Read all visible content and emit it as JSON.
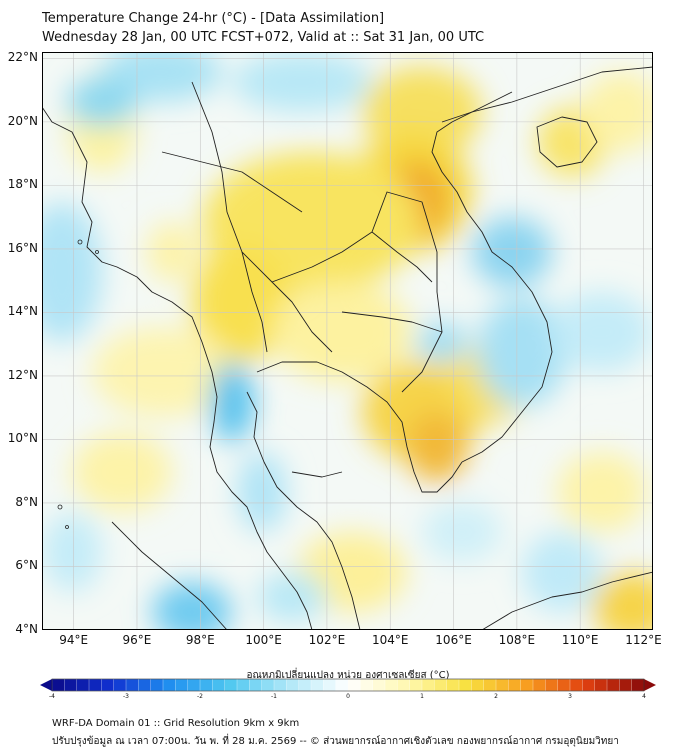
{
  "header": {
    "title_line1": "Temperature Change 24-hr (°C) - [Data Assimilation]",
    "title_line2": "Wednesday 28 Jan, 00 UTC FCST+072, Valid at :: Sat 31 Jan, 00 UTC"
  },
  "map": {
    "lat_labels": [
      "22°N",
      "20°N",
      "18°N",
      "16°N",
      "14°N",
      "12°N",
      "10°N",
      "8°N",
      "6°N",
      "4°N"
    ],
    "lon_labels": [
      "94°E",
      "96°E",
      "98°E",
      "100°E",
      "102°E",
      "104°E",
      "106°E",
      "108°E",
      "110°E",
      "112°E"
    ],
    "extent": {
      "lon_min": 93,
      "lon_max": 112.3,
      "lat_min": 4,
      "lat_max": 22.2
    },
    "colors": {
      "land_outline": "#222222",
      "grid": "#c8c8c8",
      "warm": "#f5e04a",
      "hot": "#f0a020",
      "cool": "#8cd8f0",
      "cold": "#40b8e8"
    }
  },
  "colorbar": {
    "title": "อุณหภูมิเปลี่ยนแปลง หน่วย องศาเซลเซียส (°C)",
    "ticks": [
      "-4",
      "-3",
      "-2",
      "-1",
      "0",
      "1",
      "2",
      "3",
      "4"
    ],
    "tick_values": [
      -4,
      -3,
      -2,
      -1,
      0,
      1,
      2,
      3,
      4
    ],
    "range": [
      -4,
      4
    ],
    "stops": [
      "#0a0a8a",
      "#1030d0",
      "#2090f0",
      "#50c8f0",
      "#b0e8f8",
      "#ffffff",
      "#fff8b0",
      "#f8e040",
      "#f8a020",
      "#e04010",
      "#8a0a0a"
    ]
  },
  "footer": {
    "line1": "WRF-DA Domain 01 :: Grid Resolution 9km x 9km",
    "line2": "ปรับปรุงข้อมูล ณ เวลา 07:00น. วัน พ. ที่ 28 ม.ค. 2569 -- © ส่วนพยากรณ์อากาศเชิงตัวเลข กองพยากรณ์อากาศ กรมอุตุนิยมวิทยา"
  }
}
